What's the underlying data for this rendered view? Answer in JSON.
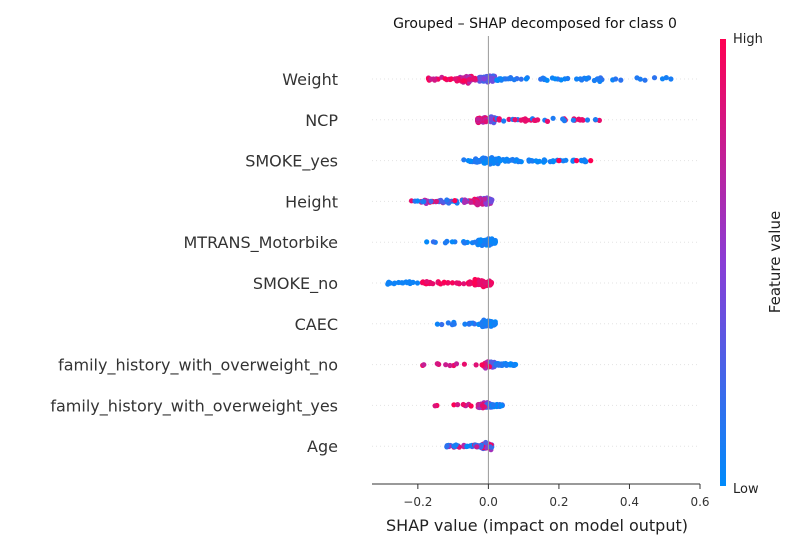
{
  "chart_data": {
    "type": "scatter",
    "subtype": "shap-beeswarm",
    "title": "Grouped – SHAP decomposed for class 0",
    "xlabel": "SHAP value (impact on model output)",
    "xlim": [
      -0.33,
      0.6
    ],
    "x_ticks": [
      -0.2,
      0.0,
      0.2,
      0.4,
      0.6
    ],
    "x_tick_labels": [
      "−0.2",
      "0.0",
      "0.2",
      "0.4",
      "0.6"
    ],
    "zero_line": 0,
    "colorbar": {
      "label": "Feature value",
      "high_label": "High",
      "low_label": "Low",
      "low_color": "#008bfb",
      "mid_color": "#8a3dd6",
      "high_color": "#ff0052"
    },
    "features": [
      {
        "name": "Weight",
        "min": -0.17,
        "max": 0.56,
        "core": [
          -0.09,
          0.02
        ],
        "low_side": "positive",
        "n": 170,
        "spread": 0.07
      },
      {
        "name": "NCP",
        "min": -0.03,
        "max": 0.33,
        "core": [
          -0.03,
          0.02
        ],
        "low_side": "positive",
        "n": 150,
        "spread": 0.06
      },
      {
        "name": "SMOKE_yes",
        "min": -0.08,
        "max": 0.29,
        "core": [
          -0.04,
          0.03
        ],
        "low_side": "core",
        "n": 130,
        "spread": 0.06,
        "outliers_high": [
          0.2,
          0.25,
          0.29
        ]
      },
      {
        "name": "Height",
        "min": -0.22,
        "max": 0.02,
        "core": [
          -0.04,
          0.01
        ],
        "low_side": "negative",
        "n": 140,
        "spread": 0.07
      },
      {
        "name": "MTRANS_Motorbike",
        "min": -0.2,
        "max": 0.02,
        "core": [
          -0.03,
          0.01
        ],
        "low_side": "core",
        "n": 130,
        "spread": 0.06
      },
      {
        "name": "SMOKE_no",
        "min": -0.29,
        "max": 0.02,
        "core": [
          -0.04,
          0.01
        ],
        "low_side": "far-negative",
        "n": 130,
        "spread": 0.06
      },
      {
        "name": "CAEC",
        "min": -0.16,
        "max": 0.02,
        "core": [
          -0.02,
          0.01
        ],
        "low_side": "core",
        "n": 120,
        "spread": 0.06
      },
      {
        "name": "family_history_with_overweight_no",
        "min": -0.19,
        "max": 0.08,
        "core": [
          -0.01,
          0.02
        ],
        "low_side": "positive",
        "n": 140,
        "spread": 0.05
      },
      {
        "name": "family_history_with_overweight_yes",
        "min": -0.17,
        "max": 0.04,
        "core": [
          -0.03,
          0.01
        ],
        "low_side": "positive",
        "n": 120,
        "spread": 0.05
      },
      {
        "name": "Age",
        "min": -0.12,
        "max": 0.02,
        "core": [
          -0.02,
          0.01
        ],
        "low_side": "mixed",
        "n": 110,
        "spread": 0.05
      }
    ]
  }
}
